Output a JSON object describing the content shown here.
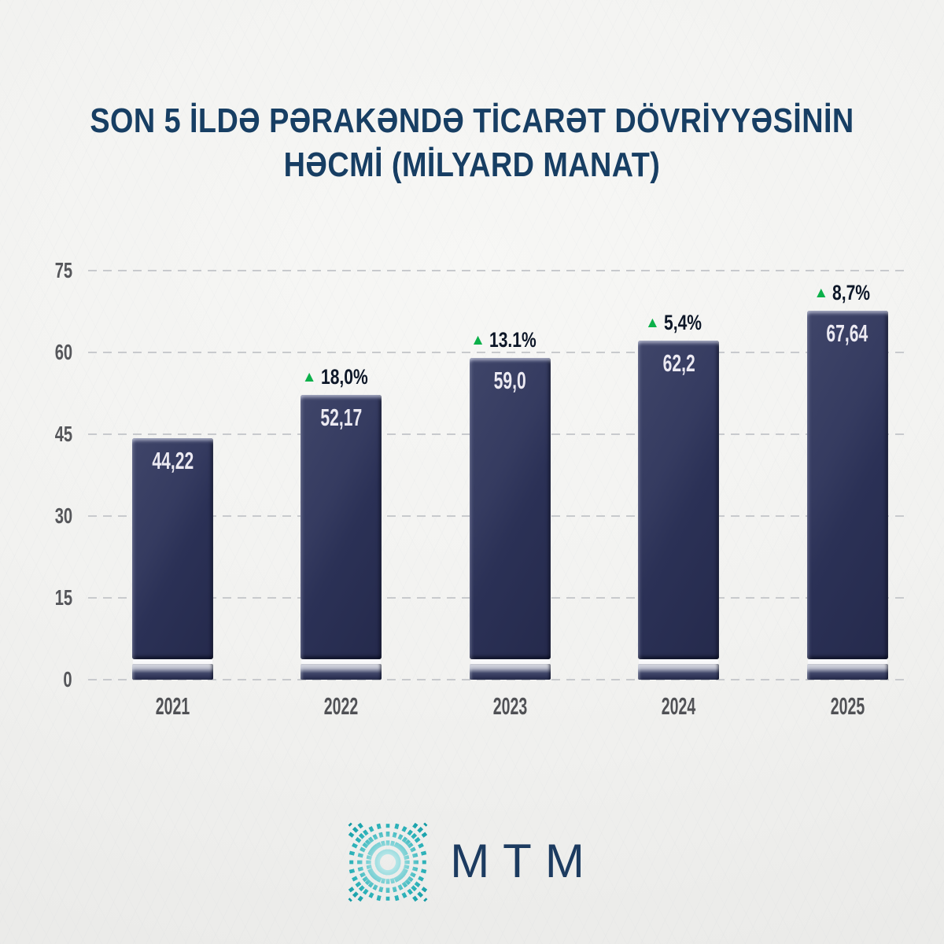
{
  "title": {
    "line1": "SON 5 İLDƏ PƏRAKƏNDƏ TİCARƏT DÖVRİYYƏSİNİN",
    "line2": "HƏCMİ (MİLYARD MANAT)"
  },
  "chart_data": {
    "type": "bar",
    "title": "SON 5 İLDƏ PƏRAKƏNDƏ TİCARƏT DÖVRİYYƏSİNİN HƏCMİ (MİLYARD MANAT)",
    "categories": [
      "2021",
      "2022",
      "2023",
      "2024",
      "2025"
    ],
    "values": [
      44.22,
      52.17,
      59.0,
      62.2,
      67.64
    ],
    "value_labels": [
      "44,22",
      "52,17",
      "59,0",
      "62,2",
      "67,64"
    ],
    "growth_labels": [
      null,
      "18,0%",
      "13.1%",
      "5,4%",
      "8,7%"
    ],
    "growth_marker": "▲",
    "xlabel": "",
    "ylabel": "",
    "ylim": [
      0,
      75
    ],
    "yticks": [
      0,
      15,
      30,
      45,
      60,
      75
    ],
    "grid": "horizontal-dashed",
    "legend": "none",
    "bar_color": "#2e3456",
    "up_color": "#0cb04a"
  },
  "logo": {
    "text": "MTM",
    "icon": "radial-dashes-square-icon",
    "icon_color": "#0d96a1",
    "text_color": "#1c3b60"
  }
}
